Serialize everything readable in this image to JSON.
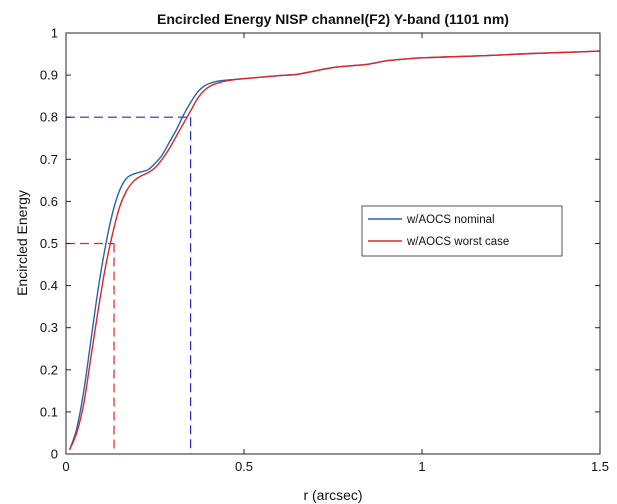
{
  "chart_data": {
    "type": "line",
    "title": "Encircled Energy NISP channel(F2) Y-band (1101 nm)",
    "xlabel": "r (arcsec)",
    "ylabel": "Encircled Energy",
    "xlim": [
      0,
      1.5
    ],
    "ylim": [
      0,
      1
    ],
    "xticks": [
      0,
      0.5,
      1,
      1.5
    ],
    "xtick_labels": [
      "0",
      "0.5",
      "1",
      "1.5"
    ],
    "yticks": [
      0,
      0.1,
      0.2,
      0.3,
      0.4,
      0.5,
      0.6,
      0.7,
      0.8,
      0.9,
      1
    ],
    "ytick_labels": [
      "0",
      "0.1",
      "0.2",
      "0.3",
      "0.4",
      "0.5",
      "0.6",
      "0.7",
      "0.8",
      "0.9",
      "1"
    ],
    "grid": false,
    "legend_position": "right-center",
    "series": [
      {
        "name": "w/AOCS nominal",
        "color": "#2166ac",
        "x": [
          0.01,
          0.03,
          0.05,
          0.07,
          0.09,
          0.11,
          0.13,
          0.15,
          0.17,
          0.19,
          0.21,
          0.23,
          0.25,
          0.27,
          0.29,
          0.31,
          0.33,
          0.35,
          0.37,
          0.39,
          0.41,
          0.43,
          0.45,
          0.48,
          0.52,
          0.56,
          0.6,
          0.65,
          0.7,
          0.75,
          0.8,
          0.85,
          0.9,
          0.95,
          1.0,
          1.1,
          1.2,
          1.3,
          1.4,
          1.5
        ],
        "y": [
          0.01,
          0.06,
          0.15,
          0.27,
          0.39,
          0.49,
          0.57,
          0.625,
          0.655,
          0.665,
          0.67,
          0.675,
          0.69,
          0.71,
          0.74,
          0.77,
          0.805,
          0.835,
          0.86,
          0.875,
          0.882,
          0.886,
          0.888,
          0.89,
          0.893,
          0.896,
          0.899,
          0.902,
          0.91,
          0.918,
          0.922,
          0.926,
          0.934,
          0.938,
          0.941,
          0.944,
          0.947,
          0.951,
          0.954,
          0.957
        ]
      },
      {
        "name": "w/AOCS worst case",
        "color": "#e0252a",
        "x": [
          0.01,
          0.03,
          0.05,
          0.07,
          0.09,
          0.11,
          0.13,
          0.15,
          0.17,
          0.19,
          0.21,
          0.23,
          0.25,
          0.27,
          0.29,
          0.31,
          0.33,
          0.35,
          0.37,
          0.39,
          0.41,
          0.43,
          0.45,
          0.48,
          0.52,
          0.56,
          0.6,
          0.65,
          0.7,
          0.75,
          0.8,
          0.85,
          0.9,
          0.95,
          1.0,
          1.1,
          1.2,
          1.3,
          1.4,
          1.5
        ],
        "y": [
          0.01,
          0.05,
          0.12,
          0.23,
          0.34,
          0.44,
          0.52,
          0.585,
          0.625,
          0.648,
          0.66,
          0.668,
          0.68,
          0.7,
          0.725,
          0.755,
          0.785,
          0.815,
          0.845,
          0.865,
          0.876,
          0.882,
          0.886,
          0.89,
          0.893,
          0.896,
          0.899,
          0.902,
          0.91,
          0.918,
          0.922,
          0.926,
          0.934,
          0.938,
          0.941,
          0.944,
          0.947,
          0.951,
          0.954,
          0.957
        ]
      }
    ],
    "reference_lines": [
      {
        "color": "#e0252a",
        "x": 0.135,
        "y": 0.5
      },
      {
        "color": "#2b2bb5",
        "x": 0.35,
        "y": 0.8
      }
    ]
  }
}
